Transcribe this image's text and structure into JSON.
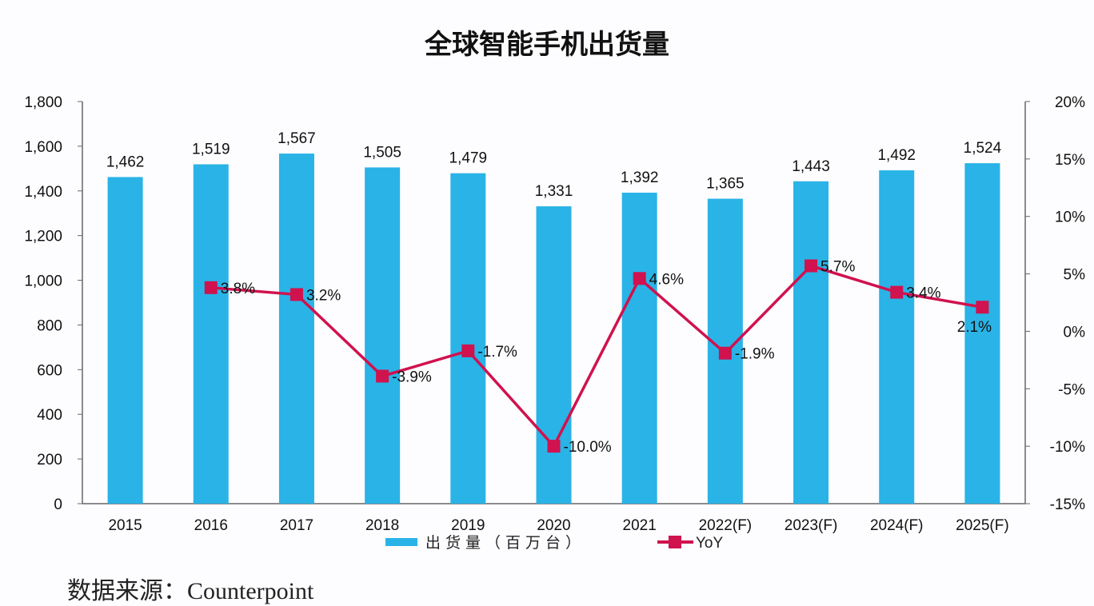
{
  "chart_data": {
    "type": "bar+line",
    "title": "全球智能手机出货量",
    "categories": [
      "2015",
      "2016",
      "2017",
      "2018",
      "2019",
      "2020",
      "2021",
      "2022(F)",
      "2023(F)",
      "2024(F)",
      "2025(F)"
    ],
    "series": [
      {
        "name": "出货量（百万台）",
        "type": "bar",
        "axis": "left",
        "color": "#2ab3e6",
        "values": [
          1462,
          1519,
          1567,
          1505,
          1479,
          1331,
          1392,
          1365,
          1443,
          1492,
          1524
        ],
        "labels": [
          "1,462",
          "1,519",
          "1,567",
          "1,505",
          "1,479",
          "1,331",
          "1,392",
          "1,365",
          "1,443",
          "1,492",
          "1,524"
        ]
      },
      {
        "name": "YoY",
        "type": "line",
        "axis": "right",
        "color": "#d0124e",
        "values": [
          null,
          3.8,
          3.2,
          -3.9,
          -1.7,
          -10.0,
          4.6,
          -1.9,
          5.7,
          3.4,
          2.1
        ],
        "labels": [
          "",
          "3.8%",
          "3.2%",
          "-3.9%",
          "-1.7%",
          "-10.0%",
          "4.6%",
          "-1.9%",
          "5.7%",
          "3.4%",
          "2.1%"
        ]
      }
    ],
    "y_left": {
      "range": [
        0,
        1800
      ],
      "ticks": [
        "0",
        "200",
        "400",
        "600",
        "800",
        "1,000",
        "1,200",
        "1,400",
        "1,600",
        "1,800"
      ]
    },
    "y_right": {
      "range": [
        -15,
        20
      ],
      "ticks": [
        "-15%",
        "-10%",
        "-5%",
        "0%",
        "5%",
        "10%",
        "15%",
        "20%"
      ]
    },
    "grid": false,
    "legend": "bottom"
  },
  "source": "数据来源：Counterpoint"
}
